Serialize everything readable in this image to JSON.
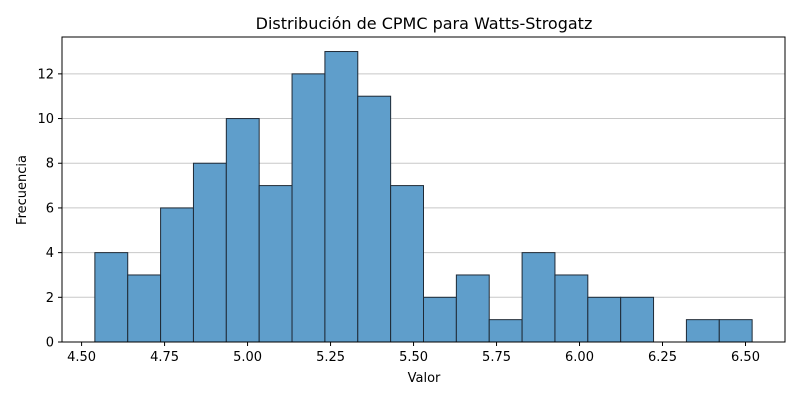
{
  "chart_data": {
    "type": "bar",
    "title": "Distribución de CPMC para Watts-Strogatz",
    "xlabel": "Valor",
    "ylabel": "Frecuencia",
    "bin_edges": [
      4.54,
      4.639,
      4.738,
      4.837,
      4.936,
      5.035,
      5.134,
      5.233,
      5.332,
      5.431,
      5.53,
      5.629,
      5.728,
      5.827,
      5.926,
      6.025,
      6.124,
      6.223,
      6.322,
      6.421,
      6.52
    ],
    "values": [
      4,
      3,
      6,
      8,
      10,
      7,
      12,
      13,
      11,
      7,
      2,
      3,
      1,
      4,
      3,
      2,
      2,
      0,
      1,
      1
    ],
    "xlim": [
      4.441,
      6.619
    ],
    "ylim": [
      0,
      13.65
    ],
    "xticks": [
      4.5,
      4.75,
      5.0,
      5.25,
      5.5,
      5.75,
      6.0,
      6.25,
      6.5
    ],
    "xtick_labels": [
      "4.50",
      "4.75",
      "5.00",
      "5.25",
      "5.50",
      "5.75",
      "6.00",
      "6.25",
      "6.50"
    ],
    "yticks": [
      0,
      2,
      4,
      6,
      8,
      10,
      12
    ],
    "ytick_labels": [
      "0",
      "2",
      "4",
      "6",
      "8",
      "10",
      "12"
    ],
    "grid": "y",
    "bar_color": "#5f9ecb",
    "edge_color": "#1f2a36",
    "grid_color": "#c8c8c8"
  }
}
